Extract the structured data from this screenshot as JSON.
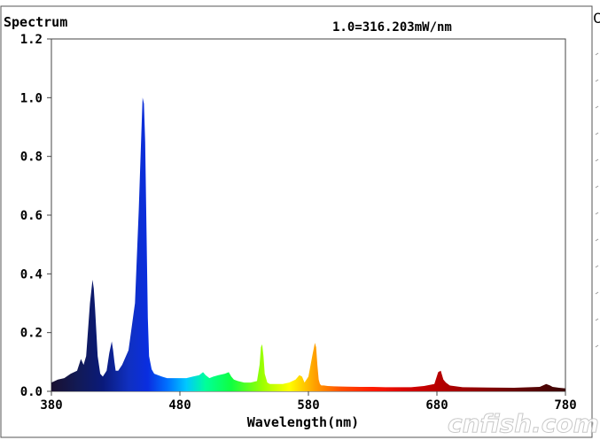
{
  "chart_data": {
    "type": "area",
    "title": "Spectrum",
    "annotation": "1.0=316.203mW/nm",
    "xlabel": "Wavelength(nm)",
    "ylabel": "",
    "xlim": [
      380,
      780
    ],
    "ylim": [
      0,
      1.2
    ],
    "x_ticks": [
      "380",
      "480",
      "580",
      "680",
      "780"
    ],
    "y_ticks": [
      "0.0",
      "0.2",
      "0.4",
      "0.6",
      "0.8",
      "1.0",
      "1.2"
    ],
    "x_tick_values": [
      380,
      480,
      580,
      680,
      780
    ],
    "y_tick_values": [
      0,
      0.2,
      0.4,
      0.6,
      0.8,
      1.0,
      1.2
    ],
    "grid": false,
    "fill": "spectral wavelength colors",
    "series": [
      {
        "x": [
          380,
          385,
          390,
          395,
          400,
          403,
          405,
          407,
          410,
          412,
          413,
          414,
          416,
          418,
          420,
          423,
          425,
          427,
          428,
          429,
          430,
          432,
          435,
          440,
          445,
          448,
          450,
          451,
          452,
          453,
          454,
          455,
          456,
          458,
          460,
          463,
          466,
          470,
          475,
          480,
          485,
          490,
          495,
          498,
          500,
          503,
          506,
          510,
          515,
          518,
          520,
          522,
          525,
          530,
          535,
          540,
          542,
          543,
          544,
          545,
          546,
          548,
          550,
          555,
          560,
          565,
          570,
          573,
          575,
          577,
          580,
          583,
          585,
          586,
          587,
          588,
          589,
          590,
          592,
          595,
          600,
          610,
          620,
          630,
          640,
          650,
          660,
          670,
          678,
          681,
          683,
          685,
          687,
          690,
          700,
          720,
          740,
          760,
          765,
          768,
          770,
          775,
          780
        ],
        "y": [
          0.03,
          0.04,
          0.045,
          0.06,
          0.07,
          0.11,
          0.09,
          0.12,
          0.3,
          0.38,
          0.35,
          0.28,
          0.12,
          0.06,
          0.05,
          0.07,
          0.13,
          0.17,
          0.14,
          0.1,
          0.07,
          0.07,
          0.09,
          0.14,
          0.3,
          0.62,
          0.88,
          1.0,
          0.98,
          0.85,
          0.55,
          0.25,
          0.12,
          0.075,
          0.06,
          0.055,
          0.05,
          0.045,
          0.045,
          0.045,
          0.045,
          0.05,
          0.055,
          0.065,
          0.055,
          0.045,
          0.05,
          0.055,
          0.06,
          0.065,
          0.05,
          0.04,
          0.035,
          0.03,
          0.03,
          0.035,
          0.09,
          0.15,
          0.16,
          0.12,
          0.06,
          0.03,
          0.025,
          0.025,
          0.025,
          0.03,
          0.04,
          0.055,
          0.05,
          0.03,
          0.05,
          0.12,
          0.165,
          0.15,
          0.09,
          0.04,
          0.025,
          0.02,
          0.02,
          0.018,
          0.017,
          0.016,
          0.015,
          0.015,
          0.014,
          0.014,
          0.014,
          0.018,
          0.025,
          0.065,
          0.07,
          0.04,
          0.03,
          0.02,
          0.014,
          0.013,
          0.012,
          0.015,
          0.025,
          0.02,
          0.015,
          0.012,
          0.01
        ]
      }
    ]
  },
  "side_panel": {
    "header_glyph": "C"
  },
  "watermark": "cnfish.com"
}
